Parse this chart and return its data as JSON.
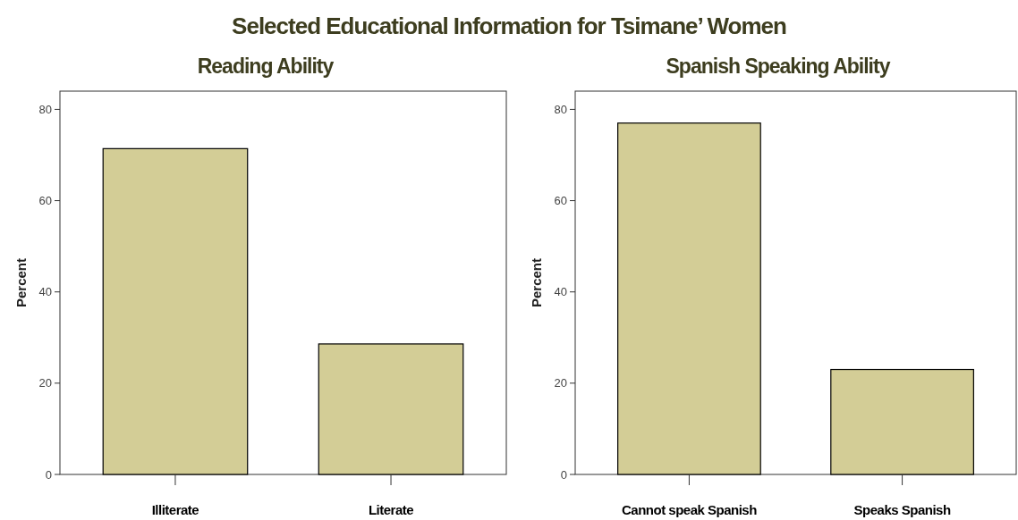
{
  "chart_data": [
    {
      "type": "bar",
      "title": "Selected Educational Information for Tsimane’ Women",
      "subtitle": "Reading Ability",
      "ylabel": "Percent",
      "categories": [
        "Illiterate",
        "Literate"
      ],
      "values": [
        71.4,
        28.6
      ],
      "color": "#d3cd96",
      "ylim": [
        0,
        84
      ],
      "yticks": [
        0,
        20,
        40,
        60,
        80
      ]
    },
    {
      "type": "bar",
      "subtitle": "Spanish Speaking Ability",
      "ylabel": "Percent",
      "categories": [
        "Cannot speak Spanish",
        "Speaks Spanish"
      ],
      "values": [
        77.0,
        23.0
      ],
      "color": "#d3cd96",
      "ylim": [
        0,
        84
      ],
      "yticks": [
        0,
        20,
        40,
        60,
        80
      ]
    }
  ]
}
